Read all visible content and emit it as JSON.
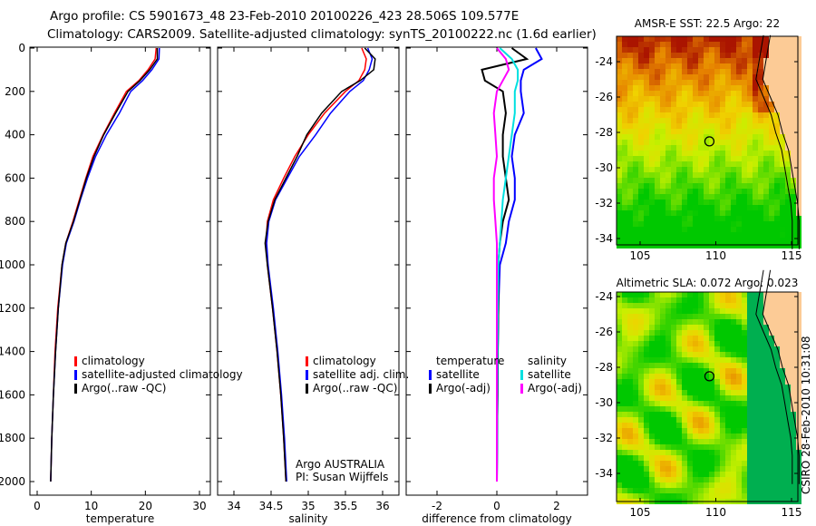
{
  "title_line1": "Argo profile: CS 5901673_48 23-Feb-2010 20100226_423 28.506S 109.577E",
  "title_line2": "Climatology: CARS2009. Satellite-adjusted climatology: synTS_20100222.nc (1.6d earlier)",
  "credit": "CSIRO 28-Feb-2010 10:31:08",
  "colors": {
    "climatology": "#ff0000",
    "satellite": "#0000ff",
    "argo": "#000000",
    "salinity_satellite": "#00e0e0",
    "salinity_argo": "#ff00ff"
  },
  "chart_data": [
    {
      "type": "line",
      "id": "temperature",
      "xlabel": "temperature",
      "ylabel": "",
      "xlim": [
        -1,
        32
      ],
      "ylim": [
        2050,
        0
      ],
      "xticks": [
        "0",
        "10",
        "20",
        "30"
      ],
      "xtickvals": [
        0,
        10,
        20,
        30
      ],
      "yticks": [
        "0",
        "200",
        "400",
        "600",
        "800",
        "1000",
        "1200",
        "1400",
        "1600",
        "1800",
        "2000"
      ],
      "depth": [
        0,
        50,
        100,
        150,
        200,
        300,
        400,
        500,
        600,
        700,
        800,
        900,
        1000,
        1200,
        1400,
        1600,
        1800,
        2000
      ],
      "series": [
        {
          "name": "climatology",
          "color": "#ff0000",
          "values": [
            22,
            21.8,
            20.5,
            18.8,
            16.5,
            14.3,
            12.2,
            10.3,
            9.0,
            7.8,
            6.6,
            5.3,
            4.6,
            3.8,
            3.3,
            3.0,
            2.7,
            2.5
          ]
        },
        {
          "name": "satellite-adjusted climatology",
          "color": "#0000ff",
          "values": [
            22.6,
            22.5,
            21.2,
            19.5,
            17.3,
            15.2,
            12.8,
            10.8,
            9.3,
            8.0,
            6.8,
            5.4,
            4.7,
            3.9,
            3.4,
            3.0,
            2.7,
            2.5
          ]
        },
        {
          "name": "Argo(..raw -QC)",
          "color": "#000000",
          "values": [
            22.2,
            22.2,
            20.8,
            19.0,
            16.8,
            14.5,
            12.3,
            10.5,
            9.1,
            7.9,
            6.7,
            5.3,
            4.6,
            3.9,
            3.4,
            3.0,
            2.7,
            2.5
          ]
        }
      ],
      "legend": [
        "climatology",
        "satellite-adjusted climatology",
        "Argo(..raw -QC)"
      ]
    },
    {
      "type": "line",
      "id": "salinity",
      "xlabel": "salinity",
      "xlim": [
        33.8,
        36.2
      ],
      "ylim": [
        2050,
        0
      ],
      "xticks": [
        "34",
        "34.5",
        "35",
        "35.5",
        "36"
      ],
      "xtickvals": [
        34,
        34.5,
        35,
        35.5,
        36
      ],
      "depth": [
        0,
        50,
        100,
        150,
        200,
        300,
        400,
        500,
        600,
        700,
        800,
        900,
        1000,
        1200,
        1400,
        1600,
        1800,
        2000
      ],
      "series": [
        {
          "name": "climatology",
          "color": "#ff0000",
          "values": [
            35.72,
            35.78,
            35.76,
            35.68,
            35.5,
            35.22,
            35.0,
            34.82,
            34.67,
            34.53,
            34.45,
            34.43,
            34.45,
            34.52,
            34.58,
            34.63,
            34.67,
            34.7
          ]
        },
        {
          "name": "satellite adj. clim.",
          "color": "#0000ff",
          "values": [
            35.8,
            35.86,
            35.82,
            35.74,
            35.56,
            35.3,
            35.1,
            34.88,
            34.72,
            34.56,
            34.47,
            34.44,
            34.46,
            34.53,
            34.59,
            34.64,
            34.68,
            34.71
          ]
        },
        {
          "name": "Argo(..raw -QC)",
          "color": "#000000",
          "values": [
            35.76,
            35.9,
            35.88,
            35.7,
            35.45,
            35.18,
            34.98,
            34.85,
            34.7,
            34.55,
            34.46,
            34.42,
            34.45,
            34.52,
            34.58,
            34.63,
            34.67,
            34.7
          ]
        }
      ],
      "legend": [
        "climatology",
        "satellite adj. clim.",
        "Argo(..raw -QC)"
      ],
      "annotation": [
        "Argo AUSTRALIA",
        "PI: Susan Wijffels"
      ]
    },
    {
      "type": "line",
      "id": "difference",
      "xlabel": "difference from climatology",
      "xlim": [
        -3,
        3
      ],
      "ylim": [
        2050,
        0
      ],
      "xticks": [
        "-2",
        "0",
        "2"
      ],
      "xtickvals": [
        -2,
        0,
        2
      ],
      "depth": [
        0,
        50,
        100,
        150,
        200,
        300,
        400,
        500,
        600,
        700,
        800,
        900,
        1000,
        1200,
        1400,
        1600,
        1800,
        2000
      ],
      "series": [
        {
          "name": "temperature satellite",
          "color": "#0000ff",
          "values": [
            1.3,
            1.5,
            0.9,
            0.8,
            0.8,
            0.9,
            0.6,
            0.5,
            0.6,
            0.6,
            0.4,
            0.3,
            0.1,
            0.05,
            0.03,
            0.02,
            0.01,
            0.0
          ]
        },
        {
          "name": "temperature Argo(-adj)",
          "color": "#000000",
          "values": [
            0.5,
            1.0,
            -0.5,
            -0.4,
            0.2,
            0.3,
            0.2,
            0.2,
            0.3,
            0.4,
            0.2,
            0.1,
            0.05,
            0.05,
            0.03,
            0.02,
            0.01,
            0.0
          ]
        },
        {
          "name": "salinity satellite",
          "color": "#00e0e0",
          "values": [
            0.1,
            0.5,
            0.7,
            0.7,
            0.6,
            0.6,
            0.5,
            0.4,
            0.3,
            0.2,
            0.15,
            0.1,
            0.05,
            0.03,
            0.02,
            0.01,
            0.01,
            0.0
          ]
        },
        {
          "name": "salinity Argo(-adj)",
          "color": "#ff00ff",
          "values": [
            0.0,
            0.3,
            0.4,
            0.2,
            0.0,
            -0.1,
            -0.05,
            0.0,
            -0.1,
            -0.1,
            -0.05,
            0.0,
            0.0,
            0.0,
            0.0,
            0.0,
            0.0,
            0.0
          ]
        }
      ],
      "legend_headers": [
        "temperature",
        "salinity"
      ],
      "legend": [
        "satellite",
        "Argo(-adj)",
        "satellite",
        "Argo(-adj)"
      ]
    },
    {
      "type": "heatmap",
      "id": "sst-map",
      "title": "AMSR-E SST: 22.5 Argo: 22",
      "xticks": [
        "105",
        "110",
        "115"
      ],
      "yticks": [
        "-24",
        "-26",
        "-28",
        "-30",
        "-32",
        "-34"
      ],
      "xlim": [
        103.8,
        115.5
      ],
      "ylim": [
        -34.5,
        -22.7
      ],
      "argo_position": {
        "lon": 109.577,
        "lat": -28.506
      }
    },
    {
      "type": "heatmap",
      "id": "sla-map",
      "title": "Altimetric SLA: 0.072 Argo: 0.023",
      "xticks": [
        "105",
        "110",
        "115"
      ],
      "yticks": [
        "-24",
        "-26",
        "-28",
        "-30",
        "-32",
        "-34"
      ],
      "xlim": [
        103.8,
        115.5
      ],
      "ylim": [
        -34.5,
        -22.7
      ],
      "argo_position": {
        "lon": 109.577,
        "lat": -28.506
      }
    }
  ]
}
